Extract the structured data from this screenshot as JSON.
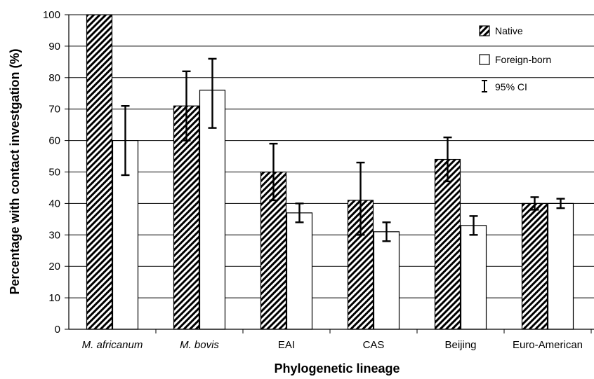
{
  "chart_data": {
    "type": "bar",
    "title": "",
    "xlabel": "Phylogenetic lineage",
    "ylabel": "Percentage with contact investgation (%)",
    "ylim": [
      0,
      100
    ],
    "yticks": [
      0,
      10,
      20,
      30,
      40,
      50,
      60,
      70,
      80,
      90,
      100
    ],
    "grid": true,
    "legend_position": "top-right",
    "categories": [
      "M. africanum",
      "M. bovis",
      "EAI",
      "CAS",
      "Beijing",
      "Euro-American"
    ],
    "italic_categories": [
      "M. africanum",
      "M. bovis"
    ],
    "series": [
      {
        "name": "Native",
        "pattern": "diagonal-hatch",
        "values": [
          100,
          71,
          50,
          41,
          54,
          40
        ],
        "ci_lower": [
          null,
          60,
          41,
          30,
          47,
          38
        ],
        "ci_upper": [
          null,
          82,
          59,
          53,
          61,
          42
        ]
      },
      {
        "name": "Foreign-born",
        "pattern": "white",
        "values": [
          60,
          76,
          37,
          31,
          33,
          40
        ],
        "ci_lower": [
          49,
          64,
          34,
          28,
          30,
          38.5
        ],
        "ci_upper": [
          71,
          86,
          40,
          34,
          36,
          41.5
        ]
      }
    ],
    "ci_legend_label": "95% CI",
    "colors": {
      "bar_stroke": "#000000",
      "hatch": "#000000",
      "grid": "#000000",
      "background": "#ffffff"
    }
  }
}
